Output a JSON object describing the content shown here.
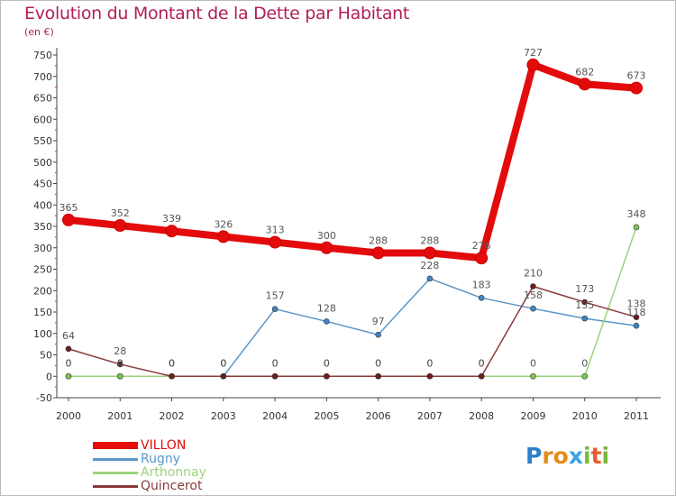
{
  "title": "Evolution du Montant de la Dette par Habitant",
  "subtitle": "(en €)",
  "logo": {
    "text": "Proxiti",
    "letters": [
      "P",
      "r",
      "o",
      "x",
      "i",
      "t",
      "i"
    ],
    "colors": [
      "#2f7ec9",
      "#e58c1a",
      "#e58c1a",
      "#3aa4df",
      "#7ab83c",
      "#e35d2e",
      "#7ab83c"
    ]
  },
  "chart_data": {
    "type": "line",
    "title": "Evolution du Montant de la Dette par Habitant",
    "subtitle": "(en €)",
    "x": [
      "2000",
      "2001",
      "2002",
      "2003",
      "2004",
      "2005",
      "2006",
      "2007",
      "2008",
      "2009",
      "2010",
      "2011"
    ],
    "ylim": [
      -50,
      750
    ],
    "yticks": [
      -50,
      0,
      50,
      100,
      150,
      200,
      250,
      300,
      350,
      400,
      450,
      500,
      550,
      600,
      650,
      700,
      750
    ],
    "ytick_labels": [
      "-50",
      "0",
      "50",
      "100",
      "150",
      "200",
      "250",
      "300",
      "350",
      "400",
      "450",
      "500",
      "550",
      "600",
      "650",
      "700",
      "750"
    ],
    "grid": false,
    "legend_position": "bottom-left",
    "series": [
      {
        "name": "VILLON",
        "color": "#e30b0b",
        "width": 8,
        "marker_fill": "#e30b0b",
        "values": [
          365,
          352,
          339,
          326,
          313,
          300,
          288,
          288,
          276,
          727,
          682,
          673
        ],
        "labels": [
          "365",
          "352",
          "339",
          "326",
          "313",
          "300",
          "288",
          "288",
          "276",
          "727",
          "682",
          "673"
        ]
      },
      {
        "name": "Rugny",
        "color": "#5a96c8",
        "width": 1.5,
        "marker_fill": "#3d86c6",
        "values": [
          0,
          0,
          0,
          0,
          157,
          128,
          97,
          228,
          183,
          158,
          135,
          118
        ],
        "labels": [
          "0",
          "0",
          "0",
          "0",
          "157",
          "128",
          "97",
          "228",
          "183",
          "158",
          "135",
          "118"
        ]
      },
      {
        "name": "Arthonnay",
        "color": "#9ad37b",
        "width": 1.5,
        "marker_fill": "#7ac94d",
        "values": [
          0,
          0,
          0,
          0,
          0,
          0,
          0,
          0,
          0,
          0,
          0,
          348
        ],
        "labels": [
          "0",
          "0",
          "0",
          "0",
          "0",
          "0",
          "0",
          "0",
          "0",
          "0",
          "0",
          "348"
        ]
      },
      {
        "name": "Quincerot",
        "color": "#8a3a3a",
        "width": 1.5,
        "marker_fill": "#6b1d1d",
        "values": [
          64,
          28,
          0,
          0,
          0,
          0,
          0,
          0,
          0,
          210,
          173,
          138
        ],
        "labels": [
          "64",
          "28",
          "0",
          "0",
          "0",
          "0",
          "0",
          "0",
          "0",
          "210",
          "173",
          "138"
        ]
      }
    ]
  }
}
